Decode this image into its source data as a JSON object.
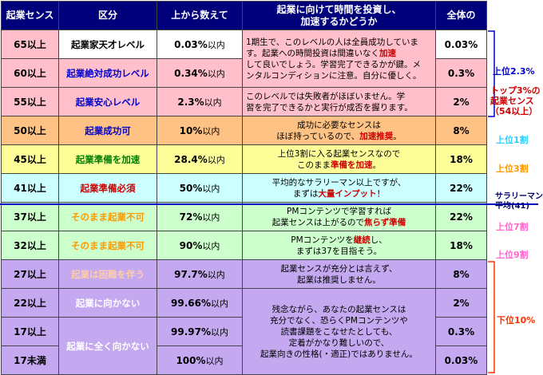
{
  "header": {
    "score": "起業センス",
    "division": "区分",
    "from_top": "上から数えて",
    "time_invest_l1": "起業に向けて時間を投資し、",
    "time_invest_l2": "加速するかどうか",
    "overall": "全体の"
  },
  "rows": [
    {
      "score": "65以上",
      "division": "起業家天才レベル",
      "pct": "0.03%",
      "suffix": "以内",
      "ratio": "0.03%",
      "advice_l1": "1期生で、このレベルの人は全員成功していま",
      "advice_l2a": "す。起業への時間投資は間違いなく",
      "advice_l2b": "加速",
      "advice_l3": "して良いでしょう。学習完了できるかが鍵。メ",
      "advice_l4": "ンタルコンディションに注意。自分に優しく。"
    },
    {
      "score": "60以上",
      "division": "起業絶対成功レベル",
      "pct": "0.34%",
      "suffix": "以内",
      "ratio": "0.3%"
    },
    {
      "score": "55以上",
      "division": "起業安心レベル",
      "pct": "2.3%",
      "suffix": "以内",
      "ratio": "2%",
      "advice_l1": "このレベルでは失敗者がほぼいません。学",
      "advice_l2": "習を完了できるかと実行が成否を握ります。"
    },
    {
      "score": "50以上",
      "division": "起業成功可",
      "pct": "10%",
      "suffix": "以内",
      "ratio": "8%",
      "advice_l1": "成功に必要なセンスは",
      "advice_l2a": "ほぼ持っているので、",
      "advice_l2b": "加速推奨",
      "advice_l2c": "。"
    },
    {
      "score": "45以上",
      "division": "起業準備を加速",
      "pct": "28.4%",
      "suffix": "以内",
      "ratio": "18%",
      "advice_l1": "上位3割に入る起業センスなので",
      "advice_l2a": "このまま",
      "advice_l2b": "準備を加速",
      "advice_l2c": "。"
    },
    {
      "score": "41以上",
      "division": "起業準備必須",
      "pct": "50%",
      "suffix": "以内",
      "ratio": "22%",
      "advice_l1": "平均的なサラリーマン以上ですが、",
      "advice_l2a": "まずは",
      "advice_l2b": "大量インプット",
      "advice_l2c": "！"
    },
    {
      "score": "37以上",
      "division": "そのまま起業不可",
      "pct": "72%",
      "suffix": "以内",
      "ratio": "22%",
      "advice_l1": "PMコンテンツで学習すれば",
      "advice_l2a": "起業センスは上がるので",
      "advice_l2b": "焦らず準備"
    },
    {
      "score": "32以上",
      "division": "そのまま起業不可",
      "pct": "90%",
      "suffix": "以内",
      "ratio": "18%",
      "advice_l1a": "PMコンテンツを",
      "advice_l1b": "継続",
      "advice_l1c": "し、",
      "advice_l2": "まずは37を目指そう。"
    },
    {
      "score": "27以上",
      "division": "起業は困難を伴う",
      "pct": "97.7%",
      "suffix": "以内",
      "ratio": "8%",
      "advice_l1": "起業センスが充分とは言えず、",
      "advice_l2": "起業は推奨しません。"
    },
    {
      "score": "22以上",
      "division": "起業に向かない",
      "pct": "99.66%",
      "suffix": "以内",
      "ratio": "2%",
      "advice_l1": "残念ながら、あなたの起業センスは",
      "advice_l2": "充分でなく、恐らくPMコンテンツや",
      "advice_l3": "読書課題をこなせたとしても、",
      "advice_l4": "定着がかなり難しいので、",
      "advice_l5": "起業向きの性格(・適正)ではありません。"
    },
    {
      "score": "17以上",
      "division": "起業に全く向かない",
      "pct": "99.97%",
      "suffix": "以内",
      "ratio": "0.3%"
    },
    {
      "score": "17未満",
      "pct": "100%",
      "suffix": "以内",
      "ratio": "0.03%"
    }
  ],
  "side": {
    "top23": "上位2.3%",
    "top3_l1": "トップ3%の",
    "top3_l2": "起業センス",
    "top3_l3": "（54以上）",
    "top1wari": "上位1割",
    "top3wari": "上位3割",
    "salaryman_l1": "サラリーマン",
    "salaryman_l2": "平均(41)",
    "top7wari": "上位7割",
    "top9wari": "上位9割",
    "bottom10": "下位10%"
  },
  "colors": {
    "header_bg": "#00007a",
    "pink": "#ffc0cb",
    "orange": "#ffc285",
    "yellow": "#ffff99",
    "cyan": "#ccffff",
    "green": "#ccffcc",
    "purple": "#c4a8f0",
    "blue_text": "#0000cc",
    "red_text": "#cc0000",
    "orange_text": "#ff9900"
  }
}
